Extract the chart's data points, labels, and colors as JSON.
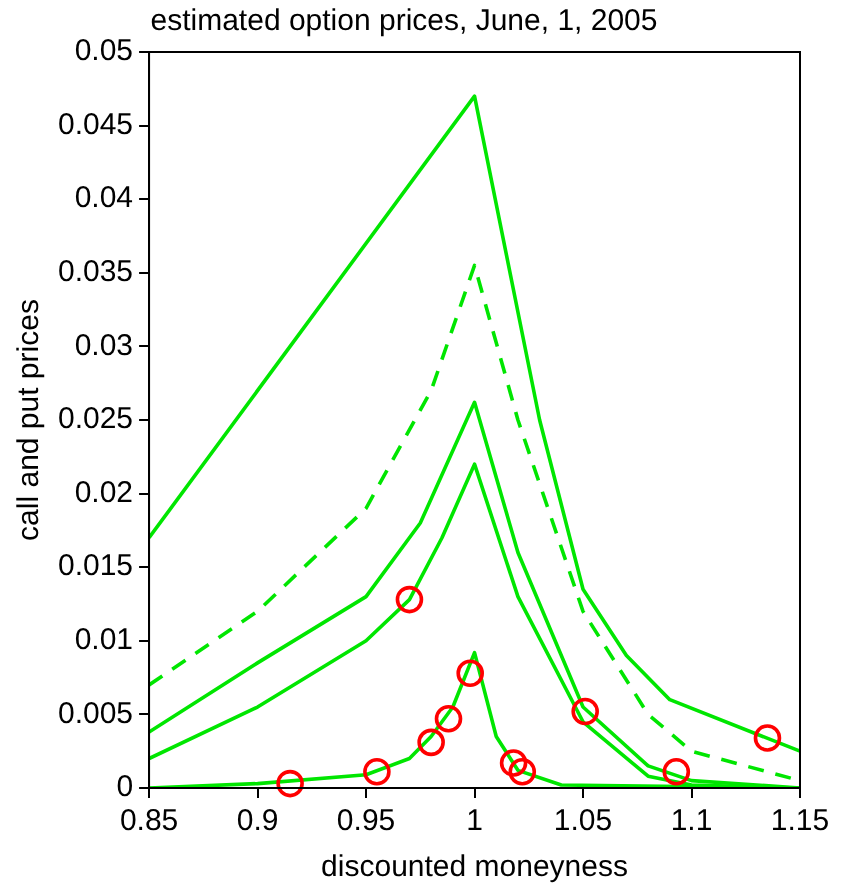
{
  "chart_data": {
    "type": "line",
    "title": "estimated option prices, June, 1, 2005",
    "xlabel": "discounted moneyness",
    "ylabel": "call and put prices",
    "xlim": [
      0.85,
      1.15
    ],
    "ylim": [
      0,
      0.05
    ],
    "xticks": [
      0.85,
      0.9,
      0.95,
      1,
      1.05,
      1.1,
      1.15
    ],
    "yticks": [
      0,
      0.005,
      0.01,
      0.015,
      0.02,
      0.025,
      0.03,
      0.035,
      0.04,
      0.045,
      0.05
    ],
    "grid": false,
    "legend": false,
    "series": [
      {
        "type": "line",
        "color": "#00e600",
        "line_style": "solid",
        "marker": "none",
        "x": [
          0.85,
          1.0,
          1.03,
          1.05,
          1.07,
          1.09,
          1.15
        ],
        "values": [
          0.017,
          0.047,
          0.025,
          0.0135,
          0.009,
          0.006,
          0.0025
        ]
      },
      {
        "type": "line",
        "color": "#00e600",
        "line_style": "dashed",
        "marker": "none",
        "x": [
          0.85,
          0.9,
          0.95,
          0.98,
          1.0,
          1.02,
          1.05,
          1.08,
          1.1,
          1.15
        ],
        "values": [
          0.007,
          0.012,
          0.019,
          0.027,
          0.0355,
          0.025,
          0.012,
          0.005,
          0.0025,
          0.0005
        ]
      },
      {
        "type": "line",
        "color": "#00e600",
        "line_style": "solid",
        "marker": "none",
        "x": [
          0.85,
          0.9,
          0.95,
          0.975,
          1.0,
          1.02,
          1.05,
          1.08,
          1.1,
          1.15
        ],
        "values": [
          0.0038,
          0.0085,
          0.013,
          0.018,
          0.0262,
          0.016,
          0.0055,
          0.0015,
          0.0005,
          0
        ]
      },
      {
        "type": "line",
        "color": "#00e600",
        "line_style": "solid",
        "marker": "none",
        "x": [
          0.85,
          0.9,
          0.95,
          0.97,
          0.985,
          1.0,
          1.02,
          1.05,
          1.08,
          1.1,
          1.15
        ],
        "values": [
          0.002,
          0.0055,
          0.01,
          0.0128,
          0.017,
          0.022,
          0.013,
          0.0045,
          0.0008,
          0.0002,
          0
        ]
      },
      {
        "type": "line",
        "color": "#00e600",
        "line_style": "solid",
        "marker": "none",
        "x": [
          0.85,
          0.9,
          0.95,
          0.97,
          0.98,
          0.99,
          1.0,
          1.01,
          1.02,
          1.04,
          1.15
        ],
        "values": [
          0,
          0.0003,
          0.0009,
          0.002,
          0.0035,
          0.0055,
          0.0092,
          0.0035,
          0.0012,
          0.0002,
          0
        ]
      },
      {
        "type": "scatter",
        "color": "#ff0000",
        "marker": "circle",
        "x": [
          0.915,
          0.955,
          0.97,
          0.98,
          0.988,
          0.998,
          1.018,
          1.022,
          1.051,
          1.093,
          1.135
        ],
        "values": [
          0.0003,
          0.0011,
          0.0128,
          0.0031,
          0.0047,
          0.0078,
          0.0017,
          0.0011,
          0.0052,
          0.0011,
          0.0034
        ]
      }
    ]
  }
}
